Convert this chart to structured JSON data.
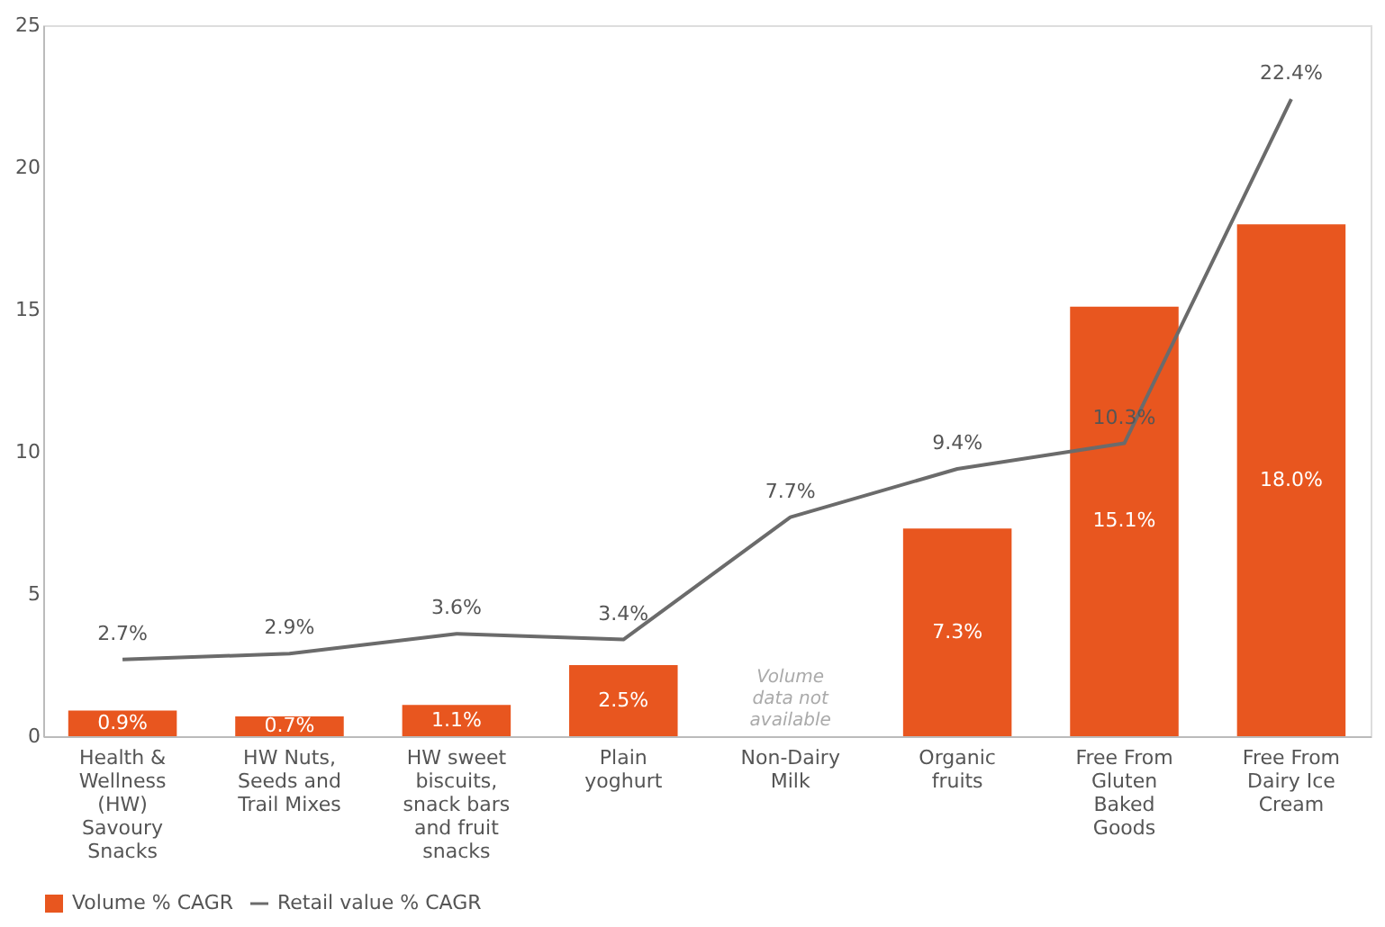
{
  "chart_data": {
    "type": "bar",
    "categories": [
      "Health &\nWellness\n(HW)\nSavoury\nSnacks",
      "HW Nuts,\nSeeds and\nTrail Mixes",
      "HW sweet\nbiscuits,\nsnack bars\nand fruit\nsnacks",
      "Plain\nyoghurt",
      "Non-Dairy\nMilk",
      "Organic\nfruits",
      "Free From\nGluten\nBaked\nGoods",
      "Free From\nDairy Ice\nCream"
    ],
    "series": [
      {
        "name": "Volume % CAGR",
        "color": "#e8561f",
        "values": [
          0.9,
          0.7,
          1.1,
          2.5,
          null,
          7.3,
          15.1,
          18.0
        ],
        "value_labels": [
          "0.9%",
          "0.7%",
          "1.1%",
          "2.5%",
          null,
          "7.3%",
          "15.1%",
          "18.0%"
        ]
      },
      {
        "name": "Retail value % CAGR",
        "type": "line",
        "color": "#6b6b6b",
        "values": [
          2.7,
          2.9,
          3.6,
          3.4,
          7.7,
          9.4,
          10.3,
          22.4
        ],
        "value_labels": [
          "2.7%",
          "2.9%",
          "3.6%",
          "3.4%",
          "7.7%",
          "9.4%",
          "10.3%",
          "22.4%"
        ]
      }
    ],
    "annotations": [
      "Volume\ndata not\navailable"
    ],
    "ylim": [
      0,
      25
    ],
    "yticks": [
      0,
      5,
      10,
      15,
      20,
      25
    ],
    "grid": false,
    "legend": "bottom",
    "marker": "none",
    "line_style": "solid"
  }
}
